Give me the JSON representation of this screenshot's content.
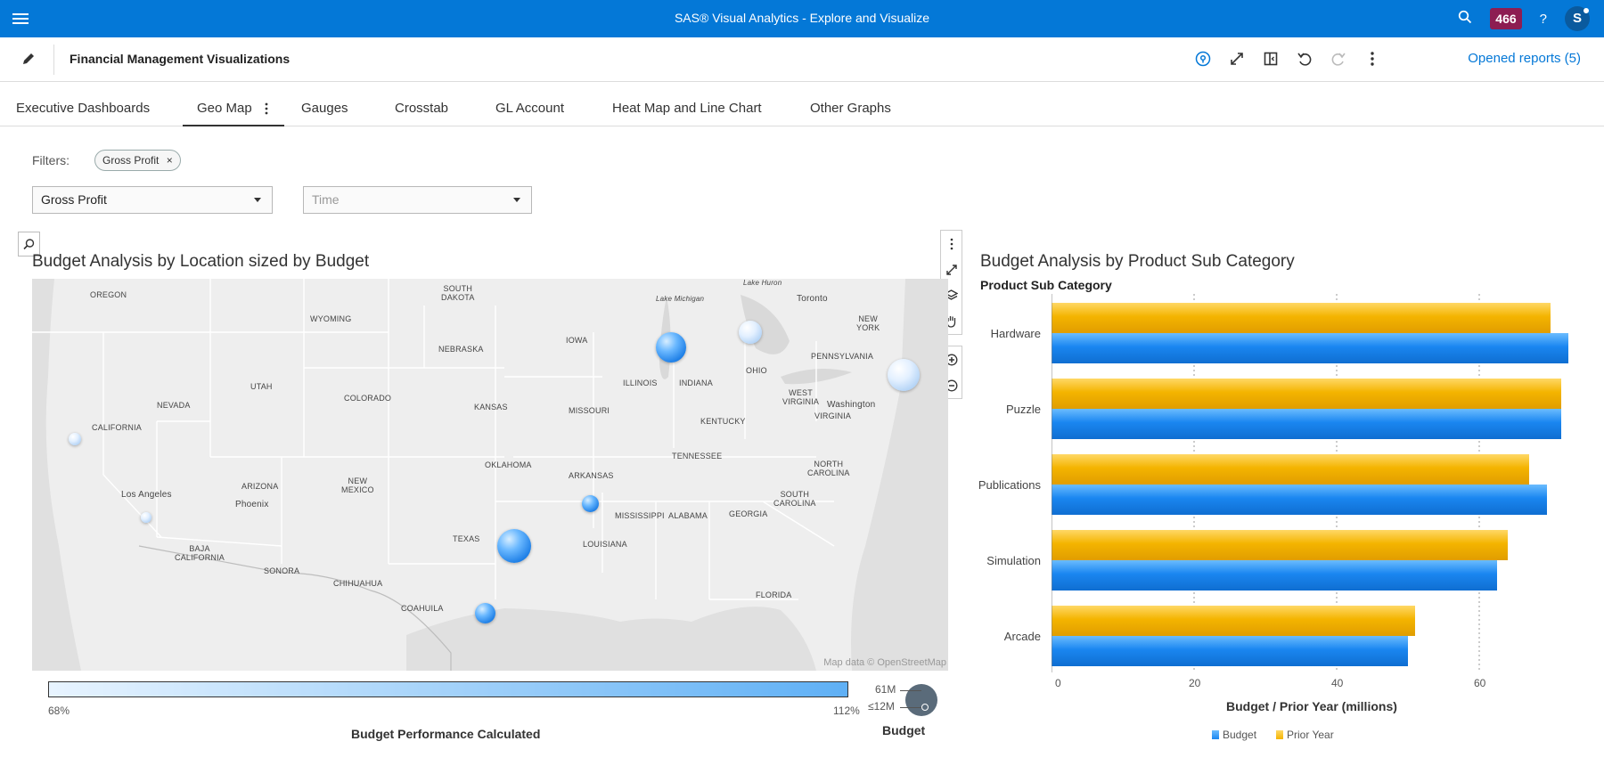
{
  "app": {
    "title": "SAS® Visual Analytics - Explore and Visualize",
    "notifications": "466",
    "user_initial": "S"
  },
  "report": {
    "title": "Financial Management Visualizations",
    "opened_reports": "Opened reports (5)"
  },
  "tabs": [
    {
      "label": "Executive Dashboards"
    },
    {
      "label": "Geo Map",
      "active": true
    },
    {
      "label": "Gauges"
    },
    {
      "label": "Crosstab"
    },
    {
      "label": "GL Account"
    },
    {
      "label": "Heat Map and Line Chart"
    },
    {
      "label": "Other Graphs"
    }
  ],
  "filters": {
    "label": "Filters:",
    "chip": "Gross Profit",
    "dropdown1": "Gross Profit",
    "dropdown2_placeholder": "Time"
  },
  "map_viz": {
    "title": "Budget Analysis by Location sized by Budget",
    "attribution": "Map data © OpenStreetMap",
    "labels": {
      "oregon": "OREGON",
      "south_dakota": "SOUTH\nDAKOTA",
      "wyoming": "WYOMING",
      "nebraska": "NEBRASKA",
      "iowa": "IOWA",
      "utah": "UTAH",
      "colorado": "COLORADO",
      "kansas": "KANSAS",
      "missouri": "MISSOURI",
      "illinois": "ILLINOIS",
      "indiana": "INDIANA",
      "ohio": "OHIO",
      "pennsylvania": "PENNSYLVANIA",
      "new_york": "NEW\nYORK",
      "toronto": "Toronto",
      "lake_huron": "Lake Huron",
      "lake_michigan": "Lake Michigan",
      "nevada": "NEVADA",
      "california": "CALIFORNIA",
      "west_virginia": "WEST\nVIRGINIA",
      "washington": "Washington",
      "virginia": "VIRGINIA",
      "kentucky": "KENTUCKY",
      "tennessee": "TENNESSEE",
      "north_carolina": "NORTH\nCAROLINA",
      "south_carolina": "SOUTH\nCAROLINA",
      "oklahoma": "OKLAHOMA",
      "arkansas": "ARKANSAS",
      "arizona": "ARIZONA",
      "new_mexico": "NEW\nMEXICO",
      "los_angeles": "Los Angeles",
      "phoenix": "Phoenix",
      "mississippi": "MISSISSIPPI",
      "alabama": "ALABAMA",
      "georgia": "GEORGIA",
      "texas": "TEXAS",
      "louisiana": "LOUISIANA",
      "baja_california": "BAJA\nCALIFORNIA",
      "sonora": "SONORA",
      "chihuahua": "CHIHUAHUA",
      "coahuila": "COAHUILA",
      "florida": "FLORIDA"
    },
    "color_legend": {
      "title": "Budget Performance Calculated",
      "min": "68%",
      "max": "112%"
    },
    "size_legend": {
      "title": "Budget",
      "max": "61M",
      "min": "≤12M"
    }
  },
  "bar_viz": {
    "title": "Budget Analysis by Product Sub Category",
    "category_axis_title": "Product Sub Category",
    "value_axis_title": "Budget / Prior Year (millions)"
  },
  "chart_data": {
    "type": "bar",
    "orientation": "horizontal",
    "title": "Budget Analysis by Product Sub Category",
    "xlabel": "Budget / Prior Year (millions)",
    "ylabel": "Product Sub Category",
    "categories": [
      "Hardware",
      "Puzzle",
      "Publications",
      "Simulation",
      "Arcade"
    ],
    "series": [
      {
        "name": "Prior Year",
        "color": "#f4b400",
        "values": [
          70,
          71.5,
          67,
          64,
          51
        ]
      },
      {
        "name": "Budget",
        "color": "#1a86f0",
        "values": [
          72.5,
          71.5,
          69.5,
          62.5,
          50
        ]
      }
    ],
    "xlim": [
      0,
      73
    ],
    "xticks": [
      "0",
      "20",
      "40",
      "60"
    ],
    "legend": "bottom",
    "grid": true
  },
  "colors": {
    "brand": "#0478d7",
    "budget": "#1a86f0",
    "prior_year": "#f4b400"
  }
}
